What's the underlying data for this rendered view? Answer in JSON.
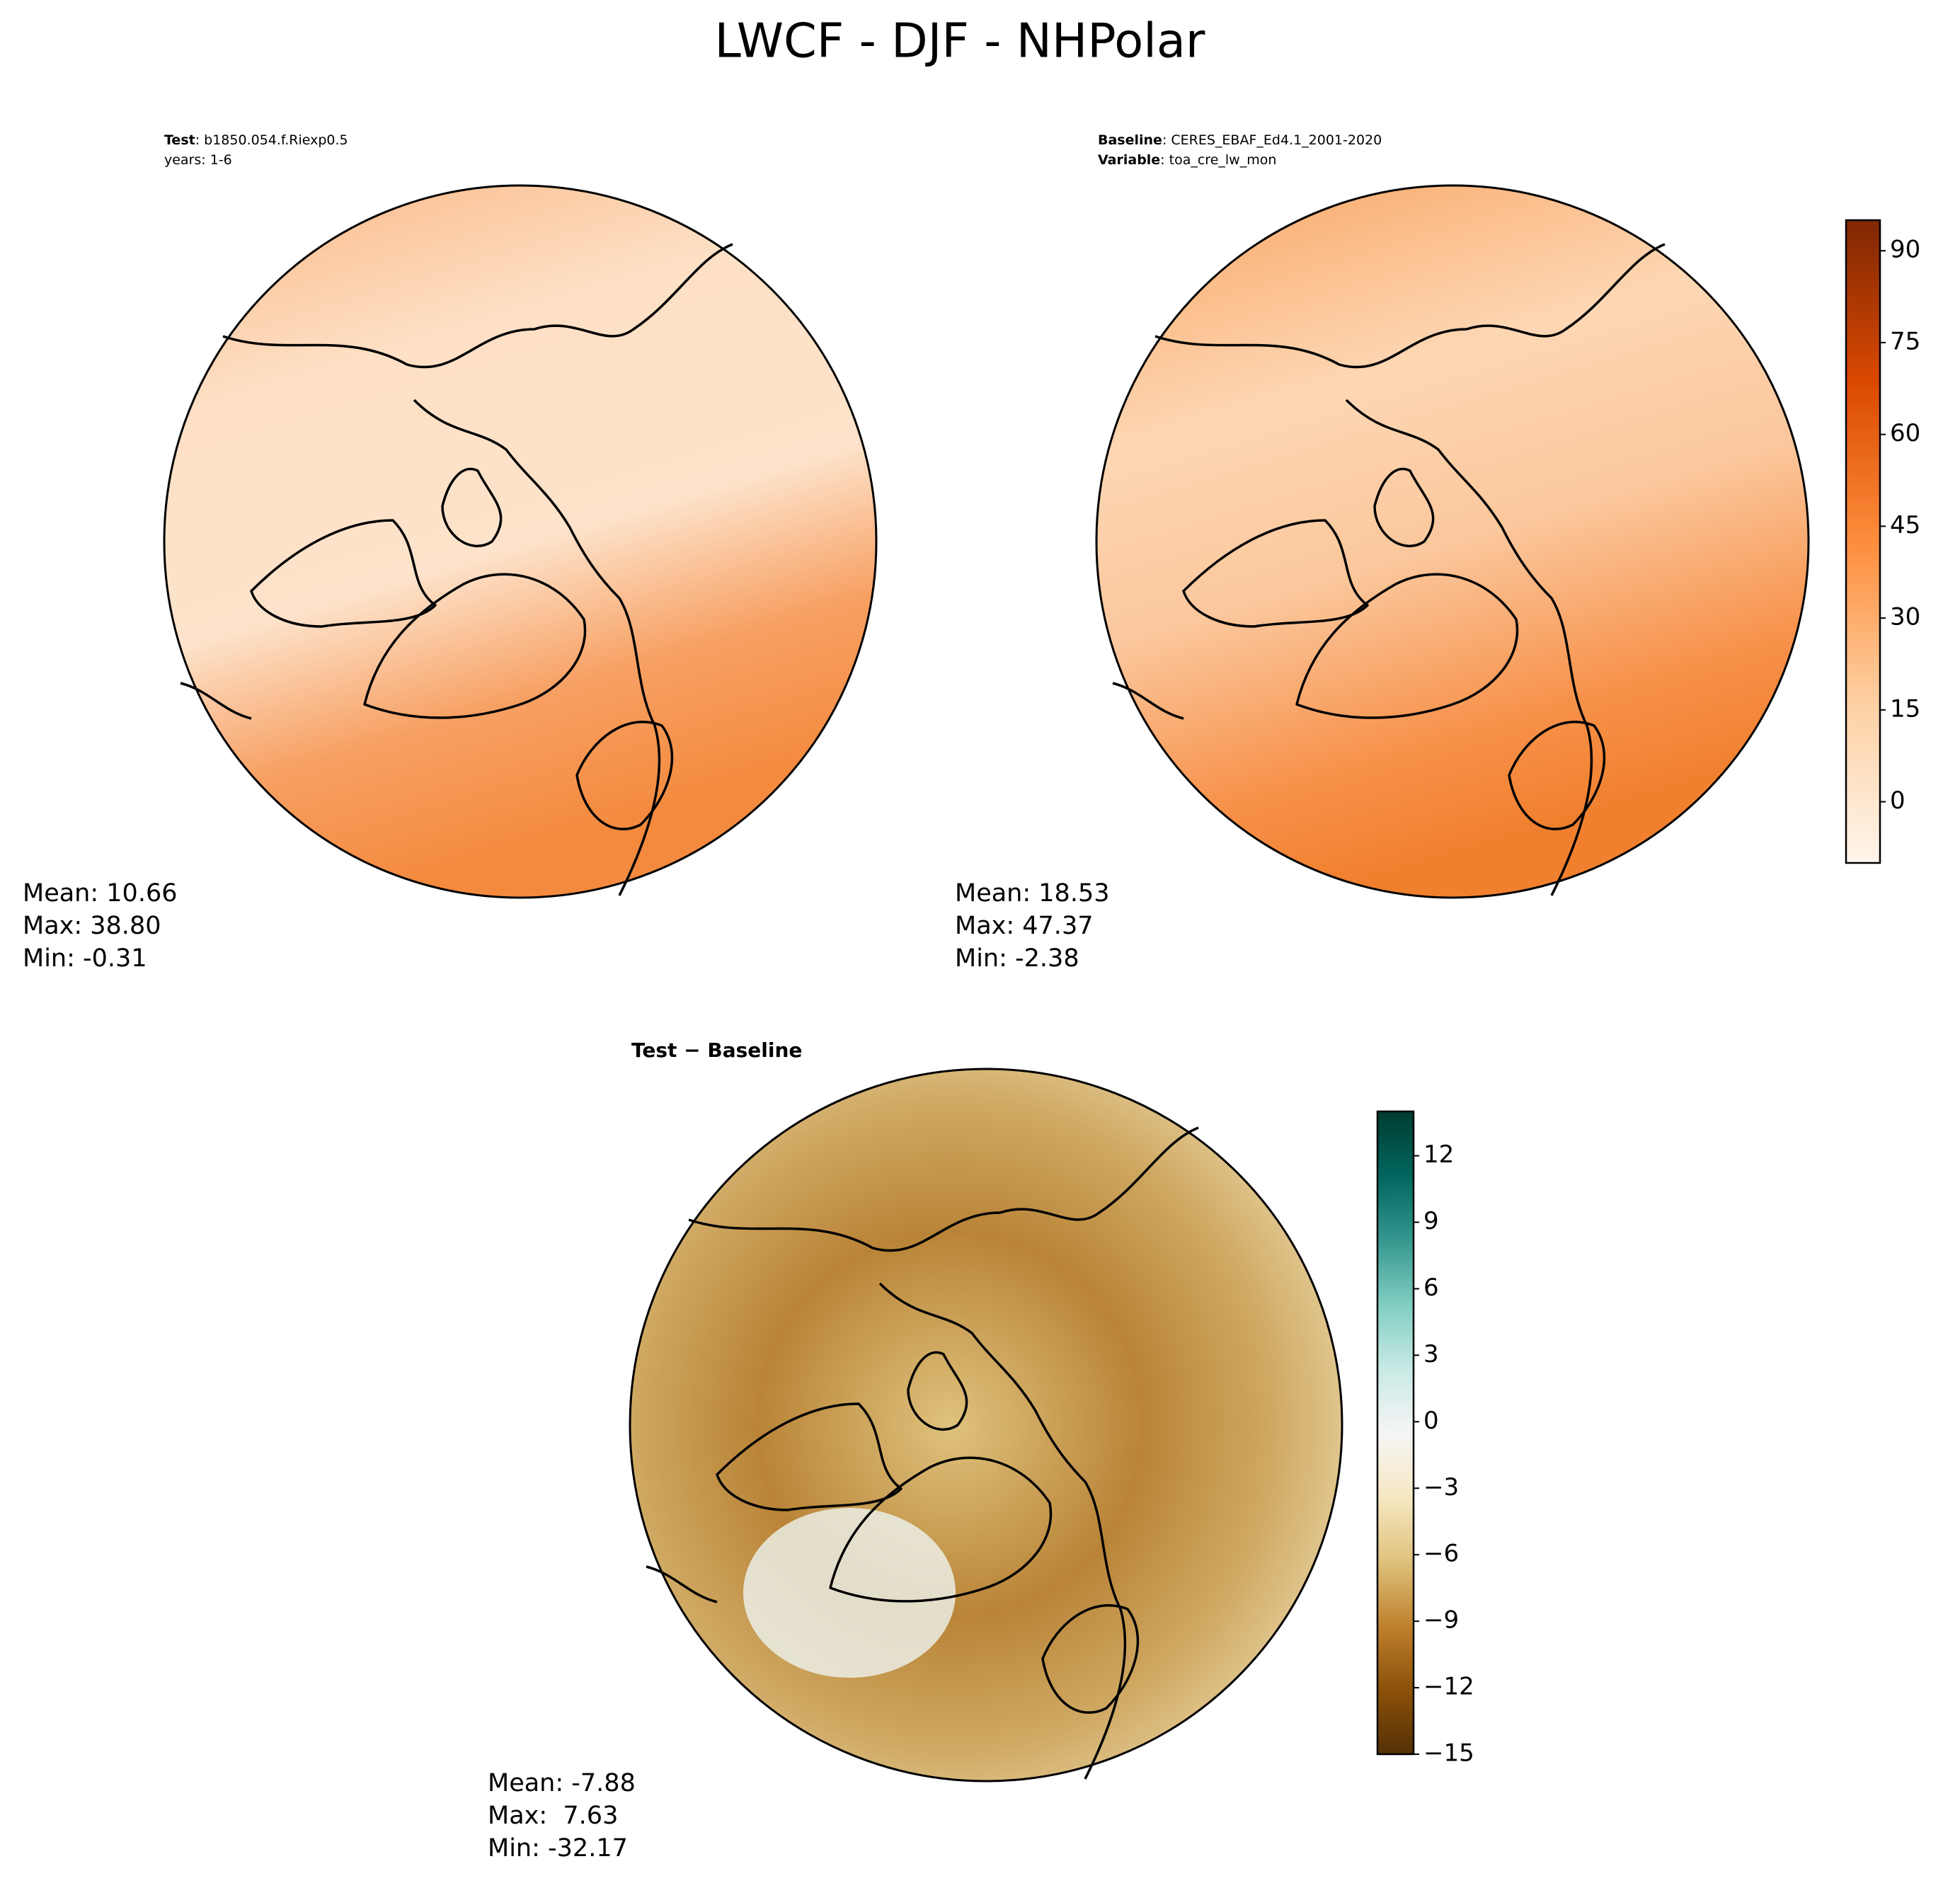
{
  "title": "LWCF - DJF - NHPolar",
  "panels": [
    {
      "lines": [
        {
          "bold": "Test",
          "text": ": b1850.054.f.Riexp0.5"
        },
        {
          "text": "years: 1-6"
        }
      ],
      "stats": [
        "Mean: 10.66",
        "Max: 38.80",
        "Min: -0.31"
      ]
    },
    {
      "lines": [
        {
          "bold": "Baseline",
          "text": ": CERES_EBAF_Ed4.1_2001-2020"
        },
        {
          "bold": "Variable",
          "text": ": toa_cre_lw_mon"
        }
      ],
      "stats": [
        "Mean: 18.53",
        "Max: 47.37",
        "Min: -2.38"
      ]
    },
    {
      "lines": [
        {
          "bold": "Test − Baseline"
        }
      ],
      "stats": [
        "Mean: -7.88",
        "Max:  7.63",
        "Min: -32.17"
      ]
    }
  ],
  "colorbars": [
    {
      "ylim": [
        -10,
        95
      ],
      "yticks": [
        0,
        15,
        30,
        45,
        60,
        75,
        90
      ],
      "colors": [
        "#fff5eb",
        "#fdd0a2",
        "#fd8d3c",
        "#d94801",
        "#7f2704"
      ]
    },
    {
      "ylim": [
        -15,
        14
      ],
      "yticks": [
        {
          "value": -15,
          "label": "−15"
        },
        {
          "value": -12,
          "label": "−12"
        },
        {
          "value": -9,
          "label": "−9"
        },
        {
          "value": -6,
          "label": "−6"
        },
        {
          "value": -3,
          "label": "−3"
        },
        0,
        3,
        6,
        9,
        12
      ],
      "colors": [
        "#543005",
        "#8c510a",
        "#bf812d",
        "#dfc27d",
        "#f6e8c3",
        "#f5f5f5",
        "#c7eae5",
        "#80cdc1",
        "#35978f",
        "#01665e",
        "#003c30"
      ]
    }
  ]
}
